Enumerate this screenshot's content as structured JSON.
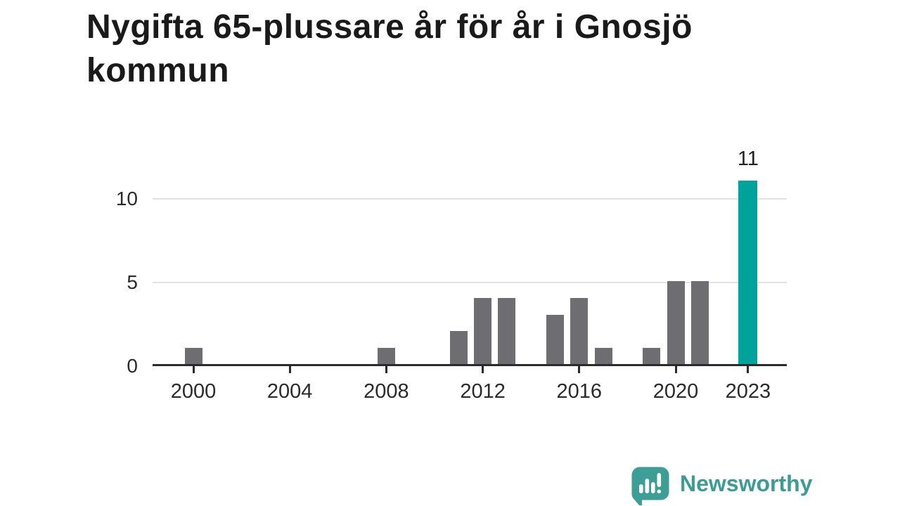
{
  "title": "Nygifta 65-plussare år för år i Gnosjö kommun",
  "chart_data": {
    "type": "bar",
    "title": "Nygifta 65-plussare år för år i Gnosjö kommun",
    "x": [
      2000,
      2001,
      2002,
      2003,
      2004,
      2005,
      2006,
      2007,
      2008,
      2009,
      2010,
      2011,
      2012,
      2013,
      2014,
      2015,
      2016,
      2017,
      2018,
      2019,
      2020,
      2021,
      2022,
      2023
    ],
    "values": [
      1,
      0,
      0,
      0,
      0,
      0,
      0,
      0,
      1,
      0,
      0,
      2,
      4,
      4,
      0,
      3,
      4,
      1,
      0,
      1,
      5,
      5,
      0,
      11
    ],
    "xlabel": "",
    "ylabel": "",
    "ylim": [
      0,
      12
    ],
    "y_ticks": [
      0,
      5,
      10
    ],
    "x_tick_years": [
      2000,
      2004,
      2008,
      2012,
      2016,
      2020,
      2023
    ],
    "grid": "horizontal",
    "legend": "none",
    "highlight": {
      "year": 2023,
      "value": 11,
      "label": "11"
    },
    "colors": {
      "bar": "#6e6d72",
      "highlight_bar": "#00a39b",
      "axis": "#2b2b2b",
      "gridline": "#e3e3e3",
      "tick_label": "#2b2b2b",
      "value_label": "#222222"
    }
  },
  "branding": {
    "logo_text": "Newsworthy",
    "logo_color": "#3d9b94",
    "logo_icon": "speech-bubble-bar-chart-exclamation"
  }
}
